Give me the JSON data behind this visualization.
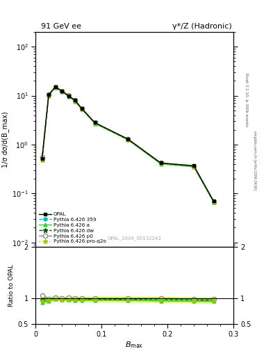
{
  "title_left": "91 GeV ee",
  "title_right": "γ*/Z (Hadronic)",
  "right_label_top": "Rivet 3.1.10, ≥ 300k events",
  "right_label_bot": "mcplots.cern.ch [arXiv:1306.3436]",
  "watermark": "OPAL_2004_S6132243",
  "xlabel": "B_{max}",
  "ylabel_main": "1/σ dσ/d(B_max)",
  "ylabel_ratio": "Ratio to OPAL",
  "xlim": [
    0.0,
    0.3
  ],
  "ylim_main": [
    0.008,
    200
  ],
  "ylim_ratio": [
    0.5,
    2.0
  ],
  "opal_x": [
    0.01,
    0.02,
    0.03,
    0.04,
    0.05,
    0.06,
    0.07,
    0.09,
    0.14,
    0.19,
    0.24,
    0.27
  ],
  "opal_y": [
    0.52,
    10.5,
    15.0,
    12.5,
    10.0,
    8.0,
    5.5,
    2.8,
    1.3,
    0.42,
    0.37,
    0.07
  ],
  "py359_x": [
    0.01,
    0.02,
    0.03,
    0.04,
    0.05,
    0.06,
    0.07,
    0.09,
    0.14,
    0.19,
    0.24,
    0.27
  ],
  "py359_y": [
    0.5,
    10.3,
    15.2,
    12.4,
    9.9,
    7.9,
    5.4,
    2.75,
    1.28,
    0.41,
    0.36,
    0.068
  ],
  "py359_color": "#00BBBB",
  "pya_x": [
    0.01,
    0.02,
    0.03,
    0.04,
    0.05,
    0.06,
    0.07,
    0.09,
    0.14,
    0.19,
    0.24,
    0.27
  ],
  "pya_y": [
    0.48,
    10.0,
    14.8,
    12.2,
    9.7,
    7.7,
    5.3,
    2.7,
    1.25,
    0.4,
    0.35,
    0.066
  ],
  "pya_color": "#33CC33",
  "pydw_x": [
    0.01,
    0.02,
    0.03,
    0.04,
    0.05,
    0.06,
    0.07,
    0.09,
    0.14,
    0.19,
    0.24,
    0.27
  ],
  "pydw_y": [
    0.5,
    10.2,
    15.0,
    12.3,
    9.85,
    7.85,
    5.4,
    2.76,
    1.27,
    0.415,
    0.358,
    0.067
  ],
  "pydw_color": "#005500",
  "pyp0_x": [
    0.01,
    0.02,
    0.03,
    0.04,
    0.05,
    0.06,
    0.07,
    0.09,
    0.14,
    0.19,
    0.24,
    0.27
  ],
  "pyp0_y": [
    0.55,
    10.4,
    15.3,
    12.5,
    10.1,
    8.05,
    5.5,
    2.8,
    1.3,
    0.42,
    0.365,
    0.069
  ],
  "pyp0_color": "#888888",
  "pyq2o_x": [
    0.01,
    0.02,
    0.03,
    0.04,
    0.05,
    0.06,
    0.07,
    0.09,
    0.14,
    0.19,
    0.24,
    0.27
  ],
  "pyq2o_y": [
    0.49,
    10.1,
    14.9,
    12.25,
    9.75,
    7.75,
    5.35,
    2.72,
    1.26,
    0.41,
    0.355,
    0.067
  ],
  "pyq2o_color": "#99CC00",
  "band_inner_color": "#33CC33",
  "band_outer_color": "#CCFF00",
  "band_inner_alpha": 0.4,
  "band_outer_alpha": 0.5,
  "ratio_py359": [
    0.96,
    0.981,
    1.013,
    0.992,
    0.99,
    0.988,
    0.982,
    0.982,
    0.985,
    0.976,
    0.973,
    0.971
  ],
  "ratio_pya": [
    0.92,
    0.952,
    0.987,
    0.976,
    0.97,
    0.963,
    0.964,
    0.964,
    0.962,
    0.952,
    0.946,
    0.943
  ],
  "ratio_pydw": [
    0.96,
    0.971,
    1.0,
    0.984,
    0.985,
    0.981,
    0.982,
    0.986,
    0.977,
    0.988,
    0.968,
    0.957
  ],
  "ratio_pyp0": [
    1.058,
    0.99,
    1.02,
    1.0,
    1.01,
    1.006,
    1.0,
    1.0,
    1.0,
    1.0,
    0.986,
    0.986
  ],
  "ratio_pyq2o": [
    0.942,
    0.962,
    0.993,
    0.98,
    0.975,
    0.969,
    0.973,
    0.971,
    0.969,
    0.976,
    0.959,
    0.957
  ]
}
